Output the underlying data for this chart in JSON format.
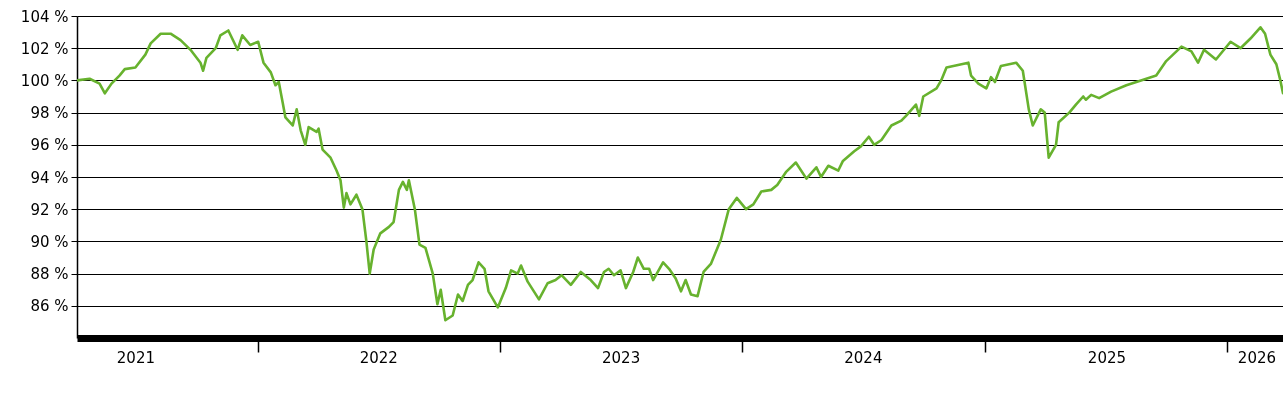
{
  "chart_data": {
    "type": "line",
    "x": [
      "2021-04-04",
      "2021-04-23",
      "2021-05-08",
      "2021-05-16",
      "2021-05-26",
      "2021-06-07",
      "2021-06-15",
      "2021-07-01",
      "2021-07-16",
      "2021-07-24",
      "2021-08-08",
      "2021-08-23",
      "2021-09-07",
      "2021-09-22",
      "2021-10-07",
      "2021-10-11",
      "2021-10-16",
      "2021-10-30",
      "2021-11-06",
      "2021-11-18",
      "2021-12-02",
      "2021-12-09",
      "2021-12-21",
      "2022-01-02",
      "2022-01-10",
      "2022-01-21",
      "2022-01-28",
      "2022-02-02",
      "2022-02-08",
      "2022-02-12",
      "2022-02-23",
      "2022-03-01",
      "2022-03-07",
      "2022-03-14",
      "2022-03-19",
      "2022-03-31",
      "2022-04-03",
      "2022-04-09",
      "2022-04-21",
      "2022-04-30",
      "2022-05-06",
      "2022-05-11",
      "2022-05-15",
      "2022-05-21",
      "2022-05-30",
      "2022-06-08",
      "2022-06-14",
      "2022-06-19",
      "2022-06-25",
      "2022-07-05",
      "2022-07-18",
      "2022-07-25",
      "2022-08-02",
      "2022-08-08",
      "2022-08-14",
      "2022-08-17",
      "2022-08-26",
      "2022-09-02",
      "2022-09-11",
      "2022-09-22",
      "2022-09-29",
      "2022-10-04",
      "2022-10-11",
      "2022-10-22",
      "2022-10-30",
      "2022-11-06",
      "2022-11-14",
      "2022-11-21",
      "2022-11-30",
      "2022-12-09",
      "2022-12-15",
      "2022-12-29",
      "2023-01-10",
      "2023-01-18",
      "2023-01-28",
      "2023-02-02",
      "2023-02-12",
      "2023-03-01",
      "2023-03-14",
      "2023-03-26",
      "2023-04-04",
      "2023-04-18",
      "2023-05-03",
      "2023-05-18",
      "2023-05-29",
      "2023-06-07",
      "2023-06-14",
      "2023-06-22",
      "2023-07-02",
      "2023-07-10",
      "2023-07-21",
      "2023-07-28",
      "2023-08-06",
      "2023-08-14",
      "2023-08-20",
      "2023-09-04",
      "2023-09-13",
      "2023-09-23",
      "2023-10-01",
      "2023-10-08",
      "2023-10-16",
      "2023-10-26",
      "2023-11-04",
      "2023-11-15",
      "2023-11-30",
      "2023-12-12",
      "2023-12-24",
      "2024-01-07",
      "2024-01-18",
      "2024-01-30",
      "2024-02-14",
      "2024-02-23",
      "2024-03-07",
      "2024-03-22",
      "2024-04-07",
      "2024-04-22",
      "2024-04-29",
      "2024-05-10",
      "2024-05-25",
      "2024-06-01",
      "2024-06-18",
      "2024-06-28",
      "2024-07-10",
      "2024-07-18",
      "2024-07-29",
      "2024-08-13",
      "2024-08-28",
      "2024-09-04",
      "2024-09-19",
      "2024-09-24",
      "2024-09-30",
      "2024-10-20",
      "2024-10-27",
      "2024-11-04",
      "2024-12-07",
      "2024-12-11",
      "2024-12-22",
      "2025-01-03",
      "2025-01-10",
      "2025-01-16",
      "2025-01-25",
      "2025-02-17",
      "2025-02-27",
      "2025-03-08",
      "2025-03-14",
      "2025-03-26",
      "2025-04-01",
      "2025-04-07",
      "2025-04-18",
      "2025-04-22",
      "2025-05-08",
      "2025-05-18",
      "2025-05-29",
      "2025-06-02",
      "2025-06-10",
      "2025-06-22",
      "2025-07-10",
      "2025-08-02",
      "2025-08-24",
      "2025-09-16",
      "2025-10-01",
      "2025-10-24",
      "2025-11-08",
      "2025-11-18",
      "2025-11-27",
      "2025-12-15",
      "2026-01-06",
      "2026-01-21",
      "2026-02-05",
      "2026-02-20",
      "2026-02-27",
      "2026-03-07",
      "2026-03-16",
      "2026-03-22",
      "2026-03-26"
    ],
    "series": [
      {
        "color": "#67b22e",
        "values": [
          100.0,
          100.1,
          99.8,
          99.2,
          99.8,
          100.3,
          100.7,
          100.8,
          101.6,
          102.3,
          102.9,
          102.9,
          102.5,
          101.9,
          101.1,
          100.6,
          101.4,
          102.0,
          102.8,
          103.1,
          101.9,
          102.8,
          102.2,
          102.4,
          101.1,
          100.5,
          99.7,
          99.9,
          98.6,
          97.7,
          97.2,
          98.2,
          96.9,
          96.0,
          97.1,
          96.8,
          97.0,
          95.7,
          95.2,
          94.4,
          93.8,
          92.1,
          93.0,
          92.3,
          92.9,
          92.0,
          90.0,
          88.0,
          89.5,
          90.5,
          90.9,
          91.2,
          93.2,
          93.7,
          93.2,
          93.8,
          92.0,
          89.8,
          89.6,
          88.0,
          86.1,
          87.0,
          85.1,
          85.4,
          86.7,
          86.3,
          87.3,
          87.6,
          88.7,
          88.3,
          86.9,
          85.9,
          87.1,
          88.2,
          88.0,
          88.5,
          87.5,
          86.4,
          87.4,
          87.6,
          87.9,
          87.3,
          88.1,
          87.6,
          87.1,
          88.1,
          88.3,
          87.9,
          88.2,
          87.1,
          88.1,
          89.0,
          88.3,
          88.3,
          87.6,
          88.7,
          88.3,
          87.7,
          86.9,
          87.6,
          86.7,
          86.6,
          88.1,
          88.6,
          90.1,
          92.0,
          92.7,
          92.0,
          92.3,
          93.1,
          93.2,
          93.5,
          94.3,
          94.9,
          93.9,
          94.6,
          94.0,
          94.7,
          94.4,
          95.0,
          95.6,
          95.9,
          96.5,
          96.0,
          96.3,
          97.2,
          97.5,
          97.8,
          98.5,
          97.8,
          99.0,
          99.5,
          100.0,
          100.8,
          101.1,
          100.3,
          99.8,
          99.5,
          100.2,
          99.9,
          100.9,
          101.1,
          100.6,
          98.2,
          97.2,
          98.2,
          98.0,
          95.2,
          96.0,
          97.4,
          98.0,
          98.5,
          99.0,
          98.8,
          99.1,
          98.9,
          99.3,
          99.7,
          100.0,
          100.3,
          101.2,
          102.1,
          101.8,
          101.1,
          101.9,
          101.3,
          102.4,
          102.0,
          102.6,
          103.3,
          102.9,
          101.6,
          101.0,
          100.0,
          99.2
        ]
      }
    ],
    "xlim": [
      "2021-04-04",
      "2026-03-26"
    ],
    "xticks": [
      {
        "value": "2021-07-01",
        "label": "2021"
      },
      {
        "value": "2022-01-01",
        "label": null
      },
      {
        "value": "2022-07-02",
        "label": "2022"
      },
      {
        "value": "2023-01-01",
        "label": null
      },
      {
        "value": "2023-07-02",
        "label": "2023"
      },
      {
        "value": "2024-01-01",
        "label": null
      },
      {
        "value": "2024-07-01",
        "label": "2024"
      },
      {
        "value": "2025-01-01",
        "label": null
      },
      {
        "value": "2025-07-03",
        "label": "2025"
      },
      {
        "value": "2026-01-01",
        "label": null
      },
      {
        "value": "2026-02-14",
        "label": "2026"
      }
    ],
    "ylim": [
      84,
      104
    ],
    "yticks": [
      {
        "value": 86,
        "label": "86 %"
      },
      {
        "value": 88,
        "label": "88 %"
      },
      {
        "value": 90,
        "label": "90 %"
      },
      {
        "value": 92,
        "label": "92 %"
      },
      {
        "value": 94,
        "label": "94 %"
      },
      {
        "value": 96,
        "label": "96 %"
      },
      {
        "value": 98,
        "label": "98 %"
      },
      {
        "value": 100,
        "label": "100 %"
      },
      {
        "value": 102,
        "label": "102 %"
      },
      {
        "value": 104,
        "label": "104 %"
      }
    ],
    "grid": "y"
  }
}
